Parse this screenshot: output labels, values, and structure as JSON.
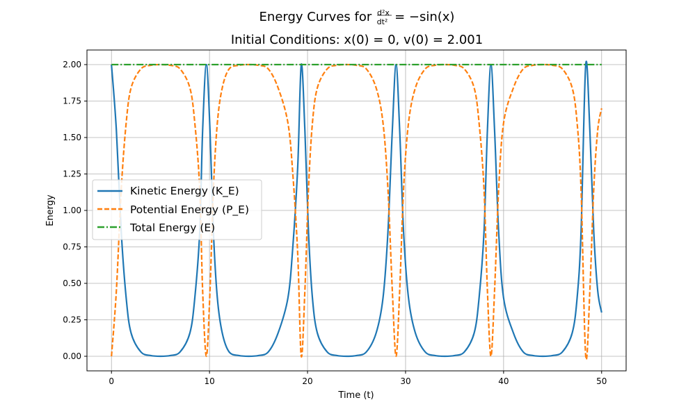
{
  "chart_data": {
    "type": "line",
    "title": "Energy Curves for d²x/dt² = −sin(x)",
    "title_parts": {
      "prefix": "Energy Curves for ",
      "numerator": "d²x",
      "denominator": "dt²",
      "rhs": "= −sin(x)"
    },
    "subtitle": "Initial Conditions: x(0) = 0, v(0) = 2.001",
    "xlabel": "Time (t)",
    "ylabel": "Energy",
    "xlim": [
      -2.5,
      52.5
    ],
    "ylim": [
      -0.1,
      2.1
    ],
    "x_ticks": [
      0,
      10,
      20,
      30,
      40,
      50
    ],
    "y_ticks": [
      "0.00",
      "0.25",
      "0.50",
      "0.75",
      "1.00",
      "1.25",
      "1.50",
      "1.75",
      "2.00"
    ],
    "grid": true,
    "legend_position": "center-left",
    "series": [
      {
        "name": "Kinetic Energy (K_E)",
        "color": "#1f77b4",
        "style": "solid",
        "x": [
          0,
          0.5,
          1,
          1.5,
          2,
          3,
          4,
          5,
          6,
          7,
          8,
          8.5,
          9,
          9.3,
          9.68,
          10.05,
          10.4,
          10.8,
          11.3,
          12,
          13,
          14,
          15,
          16,
          17,
          18,
          18.5,
          19,
          19.36,
          19.73,
          20.1,
          20.5,
          21,
          22,
          23,
          24,
          25,
          26,
          27,
          27.7,
          28.2,
          28.65,
          29.03,
          29.4,
          29.8,
          30.3,
          31,
          32,
          33,
          34,
          35,
          36,
          37,
          37.5,
          38,
          38.35,
          38.71,
          39.08,
          39.5,
          40,
          41,
          42,
          43,
          44,
          45,
          46,
          47,
          47.5,
          47.9,
          48.38,
          48.8,
          49.2,
          49.6,
          50
        ],
        "y": [
          2.0,
          1.55,
          0.85,
          0.4,
          0.16,
          0.03,
          0.005,
          0.0,
          0.005,
          0.03,
          0.16,
          0.4,
          0.85,
          1.55,
          2.0,
          1.55,
          0.85,
          0.4,
          0.16,
          0.03,
          0.005,
          0.0,
          0.005,
          0.03,
          0.16,
          0.4,
          0.75,
          1.3,
          2.0,
          1.55,
          0.85,
          0.4,
          0.16,
          0.03,
          0.005,
          0.0,
          0.005,
          0.03,
          0.16,
          0.4,
          0.85,
          1.55,
          2.0,
          1.55,
          0.85,
          0.4,
          0.16,
          0.03,
          0.005,
          0.0,
          0.005,
          0.03,
          0.16,
          0.4,
          0.85,
          1.55,
          2.0,
          1.55,
          0.85,
          0.4,
          0.16,
          0.03,
          0.005,
          0.0,
          0.005,
          0.03,
          0.16,
          0.4,
          0.85,
          2.0,
          1.55,
          0.85,
          0.45,
          0.3
        ]
      },
      {
        "name": "Potential Energy (P_E)",
        "color": "#ff7f0e",
        "style": "dashed",
        "x": [
          0,
          0.5,
          1,
          1.5,
          2,
          3,
          4,
          5,
          6,
          7,
          8,
          8.5,
          9,
          9.3,
          9.68,
          10.05,
          10.4,
          10.8,
          11.3,
          12,
          13,
          14,
          15,
          16,
          17,
          18,
          18.5,
          19,
          19.36,
          19.73,
          20.1,
          20.5,
          21,
          22,
          23,
          24,
          25,
          26,
          27,
          27.7,
          28.2,
          28.65,
          29.03,
          29.4,
          29.8,
          30.3,
          31,
          32,
          33,
          34,
          35,
          36,
          37,
          37.5,
          38,
          38.35,
          38.71,
          39.08,
          39.5,
          40,
          41,
          42,
          43,
          44,
          45,
          46,
          47,
          47.5,
          47.9,
          48.38,
          48.8,
          49.2,
          49.6,
          50
        ],
        "y": [
          0.0,
          0.45,
          1.15,
          1.6,
          1.84,
          1.97,
          1.995,
          2.0,
          1.995,
          1.97,
          1.84,
          1.6,
          1.15,
          0.45,
          0.0,
          0.45,
          1.15,
          1.6,
          1.84,
          1.97,
          1.995,
          2.0,
          1.995,
          1.97,
          1.84,
          1.6,
          1.25,
          0.7,
          0.0,
          0.45,
          1.15,
          1.6,
          1.84,
          1.97,
          1.995,
          2.0,
          1.995,
          1.97,
          1.84,
          1.6,
          1.15,
          0.45,
          0.0,
          0.45,
          1.15,
          1.6,
          1.84,
          1.97,
          1.995,
          2.0,
          1.995,
          1.97,
          1.84,
          1.6,
          1.15,
          0.45,
          0.0,
          0.45,
          1.15,
          1.6,
          1.84,
          1.97,
          1.995,
          2.0,
          1.995,
          1.97,
          1.84,
          1.6,
          1.15,
          0.0,
          0.45,
          1.15,
          1.55,
          1.7
        ]
      },
      {
        "name": "Total Energy (E)",
        "color": "#2ca02c",
        "style": "dashdot",
        "x": [
          0,
          50
        ],
        "y": [
          2.0,
          2.0
        ]
      }
    ]
  }
}
